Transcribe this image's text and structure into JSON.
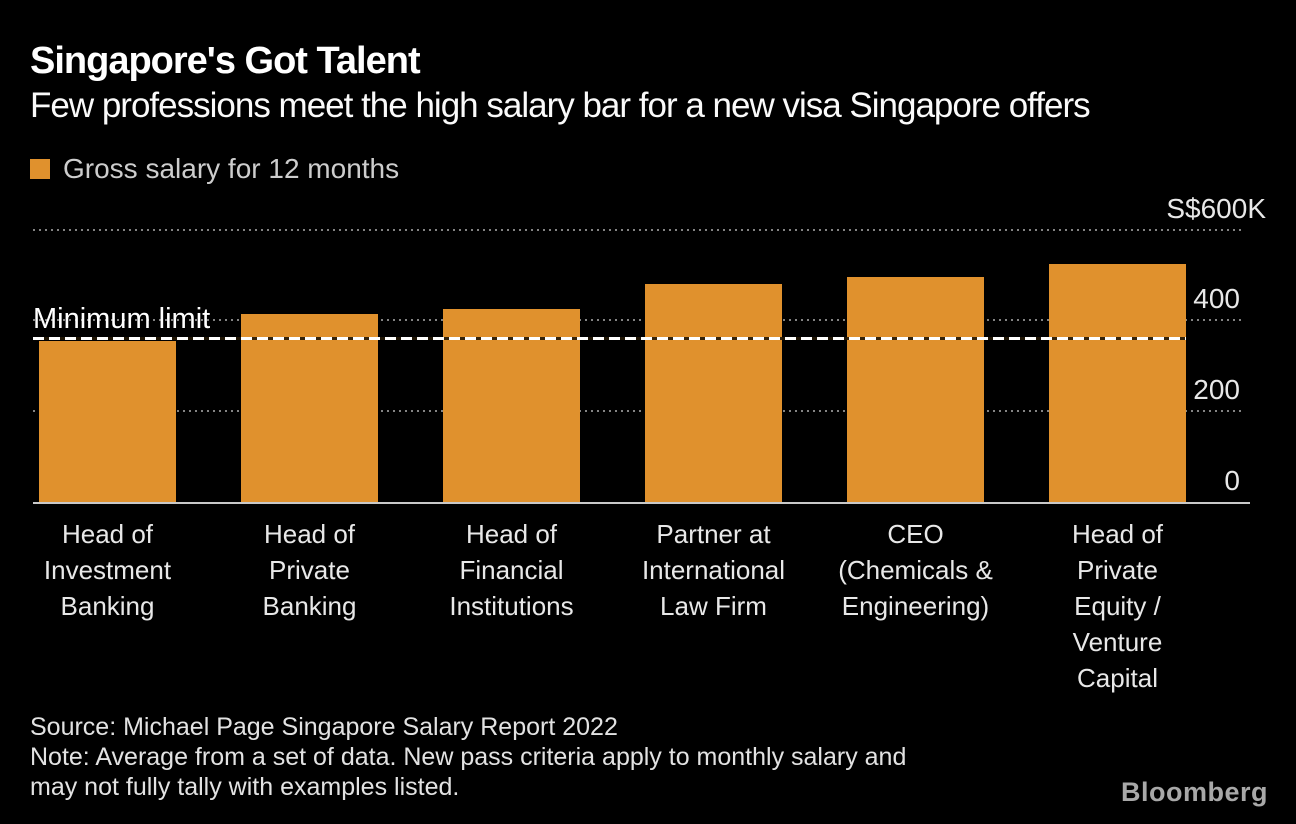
{
  "header": {
    "title": "Singapore's Got Talent",
    "subtitle": "Few professions meet the high salary bar for a new visa Singapore offers"
  },
  "legend": {
    "label": "Gross salary for 12 months",
    "swatch_color": "#E0912D"
  },
  "chart_data": {
    "type": "bar",
    "title": "Singapore's Got Talent",
    "subtitle": "Few professions meet the high salary bar for a new visa Singapore offers",
    "categories": [
      "Head of Investment Banking",
      "Head of Private Banking",
      "Head of Financial Institutions",
      "Partner at International Law Firm",
      "CEO (Chemicals & Engineering)",
      "Head of Private Equity / Venture Capital"
    ],
    "category_label_lines": [
      [
        "Head of",
        "Investment",
        "Banking"
      ],
      [
        "Head of",
        "Private",
        "Banking"
      ],
      [
        "Head of",
        "Financial",
        "Institutions"
      ],
      [
        "Partner at",
        "International",
        "Law Firm"
      ],
      [
        "CEO",
        "(Chemicals &",
        "Engineering)"
      ],
      [
        "Head of",
        "Private",
        "Equity /",
        "Venture",
        "Capital"
      ]
    ],
    "series": [
      {
        "name": "Gross salary for 12 months",
        "values": [
          355,
          415,
          425,
          480,
          495,
          525
        ]
      }
    ],
    "value_unit": "S$ thousands, 12-month gross salary",
    "ylim": [
      0,
      600
    ],
    "y_ticks": [
      {
        "value": 600,
        "label": "S$600K"
      },
      {
        "value": 400,
        "label": "400"
      },
      {
        "value": 200,
        "label": "200"
      },
      {
        "value": 0,
        "label": "0"
      }
    ],
    "reference_line": {
      "label": "Minimum limit",
      "value": 360
    },
    "bar_color": "#E0912D",
    "grid": "dotted-horizontal",
    "legend_position": "top-left",
    "y_axis_labels_position": "right"
  },
  "footer": {
    "source_line": "Source: Michael Page Singapore Salary Report 2022",
    "note_line1": "Note: Average from a set of data. New pass criteria apply to monthly salary and",
    "note_line2": "may not fully tally with examples listed.",
    "brand": "Bloomberg"
  }
}
